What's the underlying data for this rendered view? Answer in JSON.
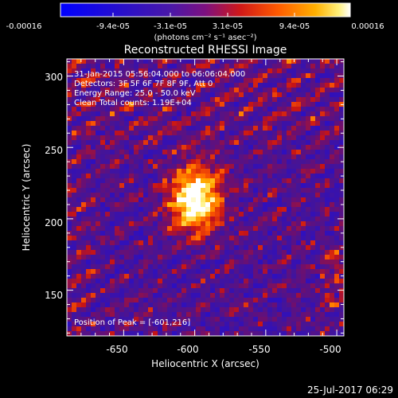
{
  "colorbar": {
    "tick_labels": [
      "-0.00016",
      "-9.4e-05",
      "-3.1e-05",
      "3.1e-05",
      "9.4e-05",
      "0.00016"
    ],
    "unit_label": "(photons cm⁻² s⁻¹ asec⁻²)"
  },
  "plot": {
    "title": "Reconstructed RHESSI Image",
    "xlabel": "Heliocentric X (arcsec)",
    "ylabel": "Heliocentric Y (arcsec)",
    "x_ticks": [
      "-650",
      "-600",
      "-550",
      "-500"
    ],
    "y_ticks": [
      "300",
      "250",
      "200",
      "150"
    ],
    "x_range": [
      -690,
      -495
    ],
    "y_range": [
      118,
      312
    ],
    "info_lines": [
      "31-Jan-2015 05:56:04.000 to 06:06:04.000",
      "Detectors: 3F 5F 6F 7F 8F 9F, Att 0",
      "Energy Range: 25.0 - 50.0 keV",
      "Clean     Total counts: 1.19E+04"
    ],
    "peak_label": "Position of Peak = [-601,216]",
    "peak_position": [
      -601,
      216
    ]
  },
  "footer": {
    "timestamp": "25-Jul-2017 06:29"
  },
  "colors": {
    "background": "#000000",
    "axes": "#ffffff"
  }
}
